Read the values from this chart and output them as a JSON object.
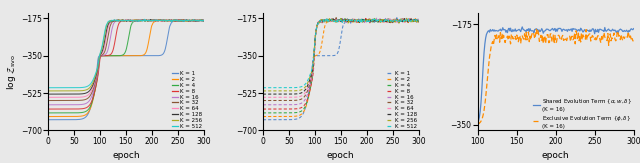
{
  "K_values": [
    1,
    2,
    4,
    8,
    16,
    32,
    64,
    128,
    256,
    512
  ],
  "colors": [
    "#5588cc",
    "#ff8c00",
    "#33aa44",
    "#dd3333",
    "#bb77cc",
    "#885533",
    "#ff88bb",
    "#333333",
    "#aaaa22",
    "#22cccc"
  ],
  "epochs": 300,
  "ylim1": [
    -700,
    -150
  ],
  "ylim2": [
    -700,
    -150
  ],
  "ylim3": [
    -360,
    -155
  ],
  "xlim1": [
    0,
    300
  ],
  "xlim2": [
    0,
    300
  ],
  "xlim3": [
    100,
    300
  ],
  "yticks1": [
    -700,
    -525,
    -350,
    -175
  ],
  "yticks2": [
    -700,
    -525,
    -350,
    -175
  ],
  "yticks3": [
    -350,
    -175
  ],
  "ylabel1": "log $\\mathcal{Z}_{\\mathrm{svo}}$",
  "xlabel": "epoch",
  "legend3_line1": "Shared Evolution Term $\\{\\alpha, w, \\delta\\}$\n(K = 16)",
  "legend3_line2": "Exclusive Evolution Term $\\{\\phi, \\delta\\}$\n(K = 16)",
  "background_color": "#e8e8e8",
  "start_values": [
    -650,
    -635,
    -618,
    -600,
    -580,
    -560,
    -545,
    -530,
    -515,
    -500
  ],
  "plateau_starts": [
    90,
    92,
    93,
    94,
    93,
    93,
    93,
    93,
    93,
    93
  ],
  "jump2_epoch": [
    230,
    195,
    155,
    130,
    120,
    115,
    112,
    110,
    108,
    107
  ],
  "top_value": -185,
  "plateau_value": -350
}
